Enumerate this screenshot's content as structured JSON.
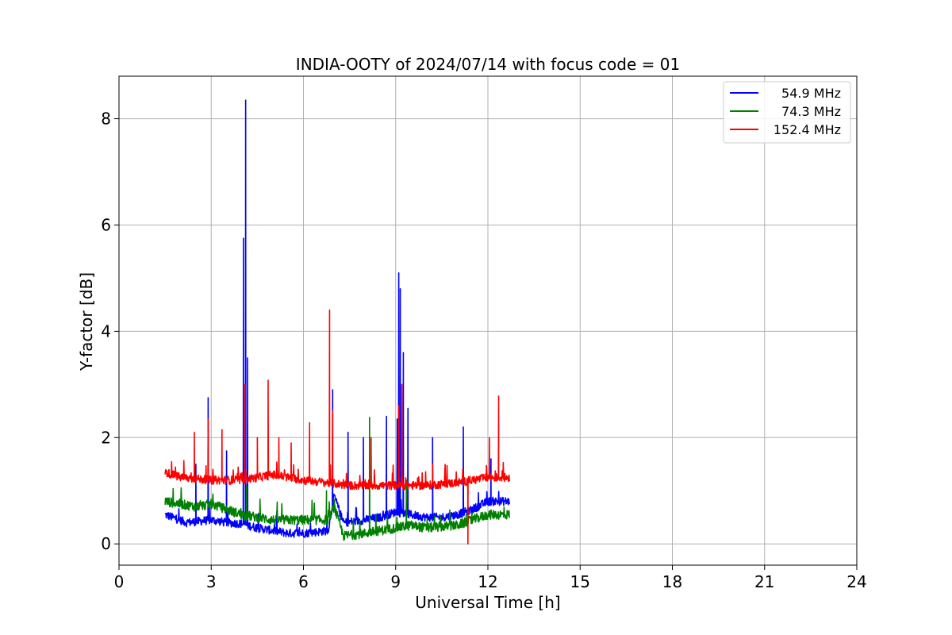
{
  "chart_data": {
    "type": "line",
    "title": "INDIA-OOTY of 2024/07/14 with focus code = 01",
    "xlabel": "Universal Time [h]",
    "ylabel": "Y-factor [dB]",
    "xlim": [
      0,
      24
    ],
    "ylim": [
      -0.4,
      8.8
    ],
    "xticks": [
      0,
      3,
      6,
      9,
      12,
      15,
      18,
      21,
      24
    ],
    "yticks": [
      0,
      2,
      4,
      6,
      8
    ],
    "xtick_labels": [
      "0",
      "3",
      "6",
      "9",
      "12",
      "15",
      "18",
      "21",
      "24"
    ],
    "ytick_labels": [
      "0",
      "2",
      "4",
      "6",
      "8"
    ],
    "grid": true,
    "legend_position": "top-right",
    "series": [
      {
        "name": "54.9 MHz",
        "color": "#0000ff",
        "base": [
          [
            1.5,
            0.55
          ],
          [
            2.2,
            0.4
          ],
          [
            3.0,
            0.45
          ],
          [
            3.5,
            0.4
          ],
          [
            4.0,
            0.38
          ],
          [
            4.5,
            0.3
          ],
          [
            5.0,
            0.25
          ],
          [
            5.5,
            0.2
          ],
          [
            6.0,
            0.2
          ],
          [
            6.8,
            0.25
          ],
          [
            7.0,
            0.9
          ],
          [
            7.3,
            0.4
          ],
          [
            8.0,
            0.45
          ],
          [
            8.5,
            0.5
          ],
          [
            9.0,
            0.6
          ],
          [
            9.5,
            0.55
          ],
          [
            10.0,
            0.5
          ],
          [
            10.5,
            0.5
          ],
          [
            11.0,
            0.55
          ],
          [
            11.5,
            0.65
          ],
          [
            12.0,
            0.8
          ],
          [
            12.7,
            0.8
          ]
        ],
        "noise": 0.08,
        "spikes": [
          [
            2.5,
            1.5
          ],
          [
            2.9,
            2.75
          ],
          [
            3.5,
            1.75
          ],
          [
            4.05,
            5.75
          ],
          [
            4.12,
            8.35
          ],
          [
            4.18,
            3.5
          ],
          [
            6.95,
            2.9
          ],
          [
            7.45,
            2.1
          ],
          [
            7.95,
            2.0
          ],
          [
            8.7,
            2.4
          ],
          [
            9.05,
            2.35
          ],
          [
            9.1,
            5.1
          ],
          [
            9.15,
            4.8
          ],
          [
            9.25,
            3.6
          ],
          [
            9.4,
            2.55
          ],
          [
            10.2,
            2.0
          ],
          [
            11.2,
            2.2
          ],
          [
            12.1,
            1.6
          ]
        ]
      },
      {
        "name": "74.3 MHz",
        "color": "#008000",
        "base": [
          [
            1.5,
            0.8
          ],
          [
            2.5,
            0.7
          ],
          [
            3.0,
            0.75
          ],
          [
            3.5,
            0.65
          ],
          [
            4.0,
            0.55
          ],
          [
            5.0,
            0.45
          ],
          [
            6.0,
            0.45
          ],
          [
            6.8,
            0.45
          ],
          [
            7.0,
            0.7
          ],
          [
            7.3,
            0.15
          ],
          [
            8.0,
            0.2
          ],
          [
            8.5,
            0.25
          ],
          [
            9.0,
            0.3
          ],
          [
            9.5,
            0.35
          ],
          [
            10.0,
            0.3
          ],
          [
            11.0,
            0.35
          ],
          [
            11.5,
            0.45
          ],
          [
            12.0,
            0.55
          ],
          [
            12.7,
            0.55
          ]
        ],
        "noise": 0.09,
        "spikes": [
          [
            4.15,
            1.1
          ],
          [
            6.75,
            1.0
          ],
          [
            8.15,
            2.38
          ],
          [
            9.35,
            1.2
          ]
        ]
      },
      {
        "name": "152.4 MHz",
        "color": "#ff0000",
        "base": [
          [
            1.5,
            1.35
          ],
          [
            2.0,
            1.25
          ],
          [
            3.0,
            1.2
          ],
          [
            4.0,
            1.2
          ],
          [
            5.0,
            1.3
          ],
          [
            6.0,
            1.2
          ],
          [
            6.8,
            1.15
          ],
          [
            7.5,
            1.1
          ],
          [
            8.5,
            1.1
          ],
          [
            9.0,
            1.1
          ],
          [
            10.0,
            1.1
          ],
          [
            11.0,
            1.15
          ],
          [
            12.0,
            1.25
          ],
          [
            12.7,
            1.25
          ]
        ],
        "noise": 0.08,
        "spikes": [
          [
            2.45,
            2.1
          ],
          [
            2.9,
            2.35
          ],
          [
            3.35,
            2.15
          ],
          [
            4.1,
            3.0
          ],
          [
            4.5,
            2.0
          ],
          [
            4.85,
            3.08
          ],
          [
            5.2,
            2.0
          ],
          [
            5.6,
            1.9
          ],
          [
            6.2,
            2.28
          ],
          [
            6.85,
            4.4
          ],
          [
            6.95,
            2.5
          ],
          [
            8.2,
            2.0
          ],
          [
            9.1,
            2.6
          ],
          [
            9.2,
            3.0
          ],
          [
            10.2,
            1.5
          ],
          [
            12.05,
            2.0
          ],
          [
            12.35,
            2.78
          ]
        ],
        "dips": [
          [
            11.35,
            0.0
          ]
        ]
      }
    ]
  }
}
